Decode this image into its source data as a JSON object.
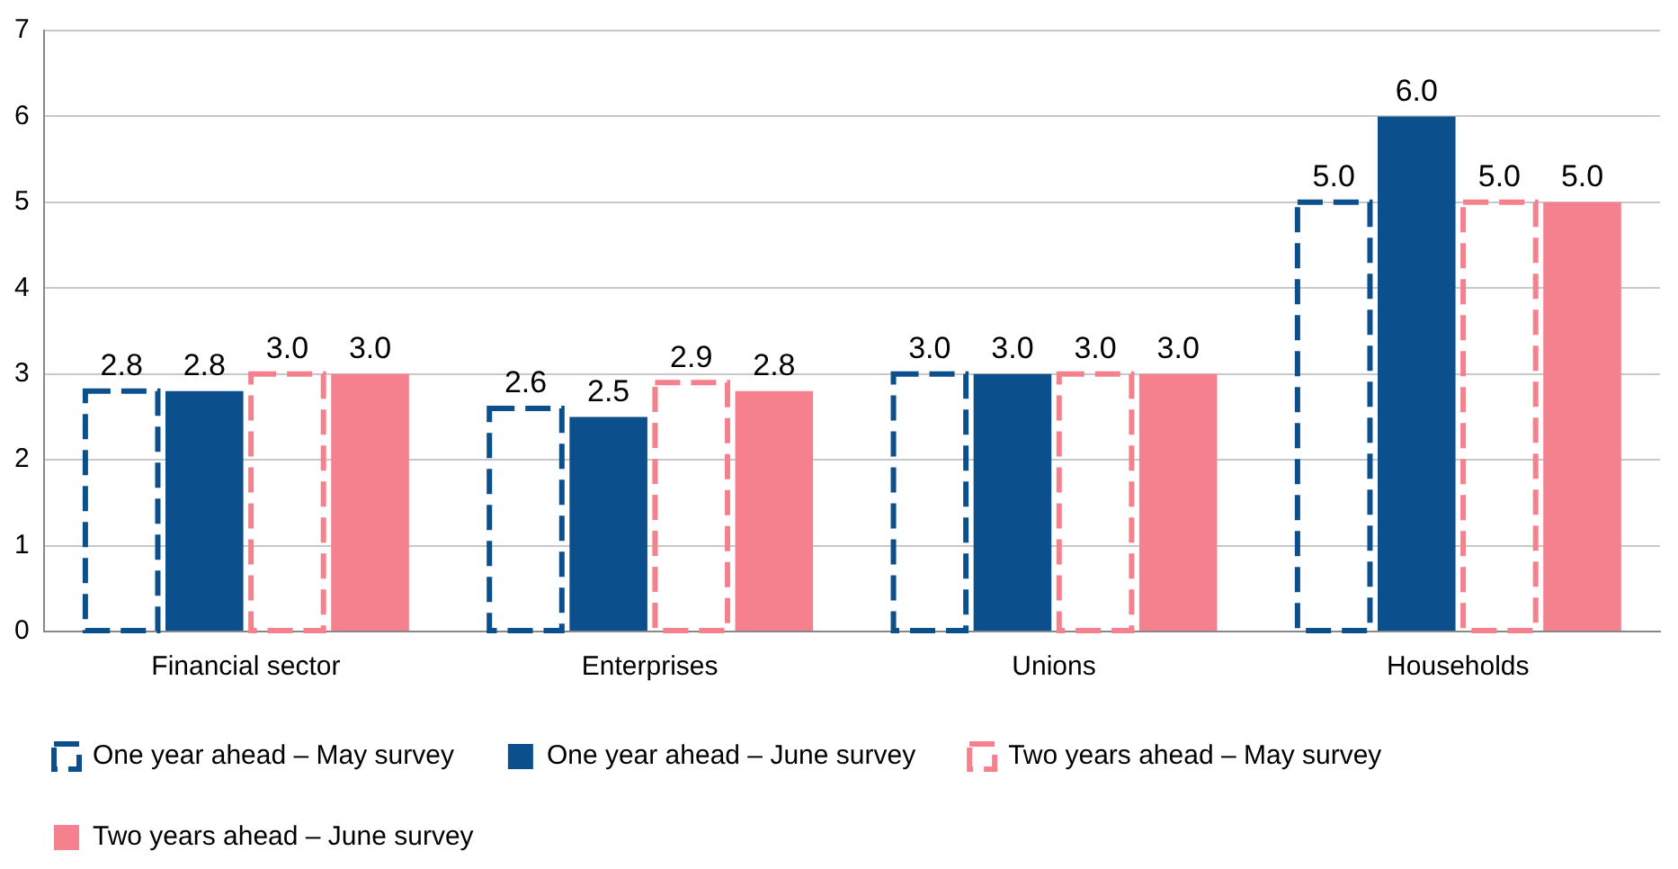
{
  "chart_data": {
    "type": "bar",
    "categories": [
      "Financial sector",
      "Enterprises",
      "Unions",
      "Households"
    ],
    "series": [
      {
        "name": "One year ahead – May survey",
        "color": "#0b4f8c",
        "line_style": "dashed",
        "values": [
          2.8,
          2.6,
          3.0,
          5.0
        ],
        "value_labels": [
          "2.8",
          "2.6",
          "3.0",
          "5.0"
        ]
      },
      {
        "name": "One year ahead – June survey",
        "color": "#0b4f8c",
        "values": [
          2.8,
          2.5,
          3.0,
          6.0
        ],
        "value_labels": [
          "2.8",
          "2.5",
          "3.0",
          "6.0"
        ]
      },
      {
        "name": "Two years ahead – May survey",
        "color": "#f5818f",
        "line_style": "dashed",
        "values": [
          3.0,
          2.9,
          3.0,
          5.0
        ],
        "value_labels": [
          "3.0",
          "2.9",
          "3.0",
          "5.0"
        ]
      },
      {
        "name": "Two years ahead – June survey",
        "color": "#f5818f",
        "values": [
          3.0,
          2.8,
          3.0,
          5.0
        ],
        "value_labels": [
          "3.0",
          "2.8",
          "3.0",
          "5.0"
        ]
      }
    ],
    "ylim": [
      0,
      7
    ],
    "yticks": [
      0,
      1,
      2,
      3,
      4,
      5,
      6,
      7
    ],
    "grid": "y",
    "legend": "bottom"
  }
}
